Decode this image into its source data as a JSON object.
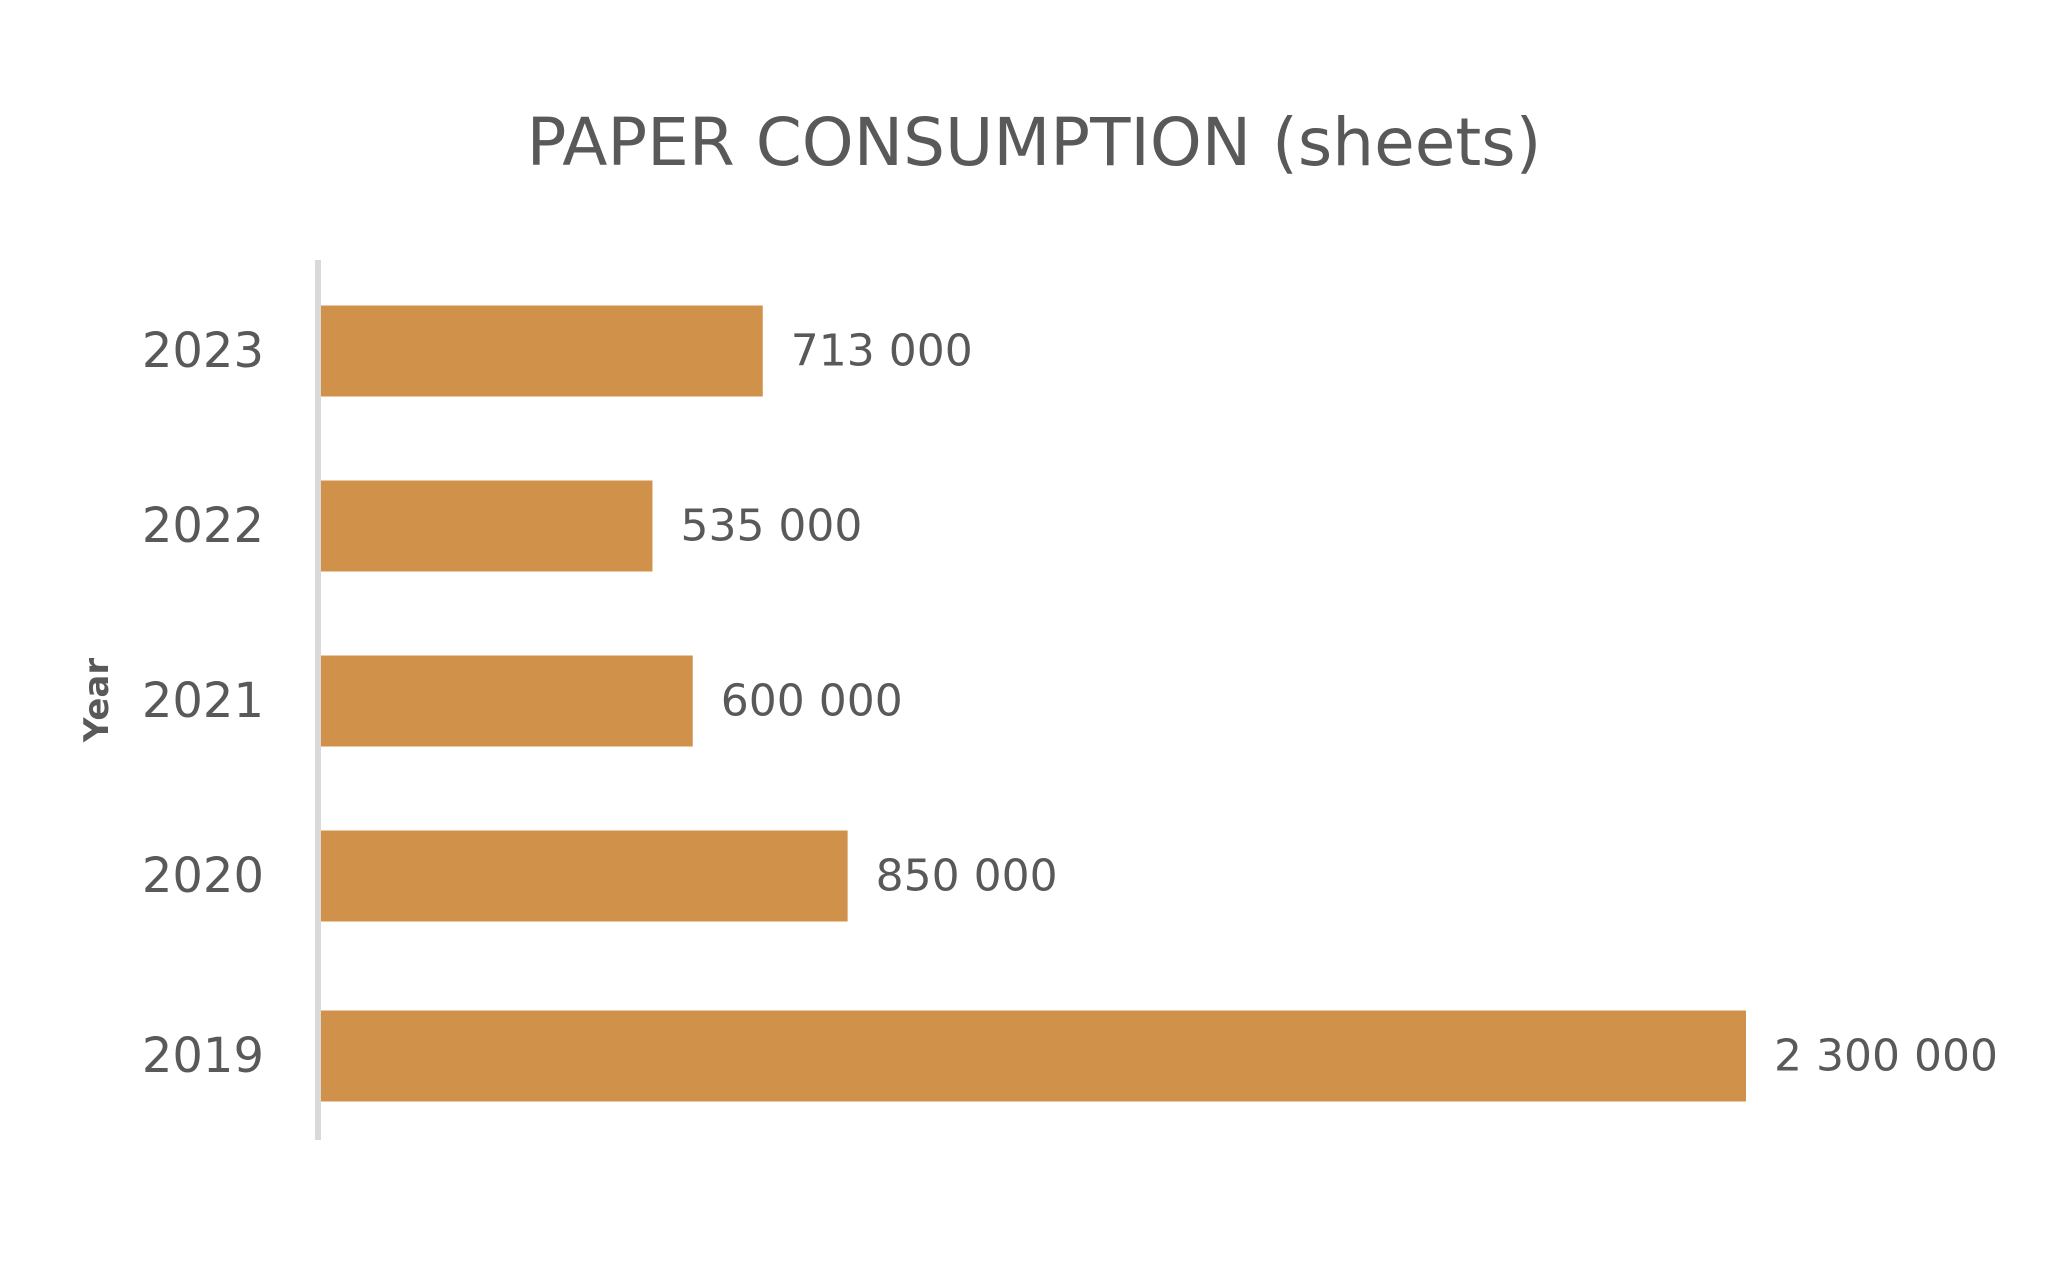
{
  "chart_data": {
    "type": "bar",
    "orientation": "horizontal",
    "title": "PAPER CONSUMPTION (sheets)",
    "xlabel": "",
    "ylabel": "Year",
    "categories": [
      "2023",
      "2022",
      "2021",
      "2020",
      "2019"
    ],
    "values": [
      713000,
      535000,
      600000,
      850000,
      2300000
    ],
    "data_labels": [
      "713 000",
      "535 000",
      "600 000",
      "850 000",
      "2 300 000"
    ],
    "xlim": [
      0,
      2300000
    ],
    "grid": false,
    "legend": "none",
    "colors": {
      "bar": "#D0924B",
      "text": "#595959",
      "axis": "#D9D9D9"
    }
  }
}
